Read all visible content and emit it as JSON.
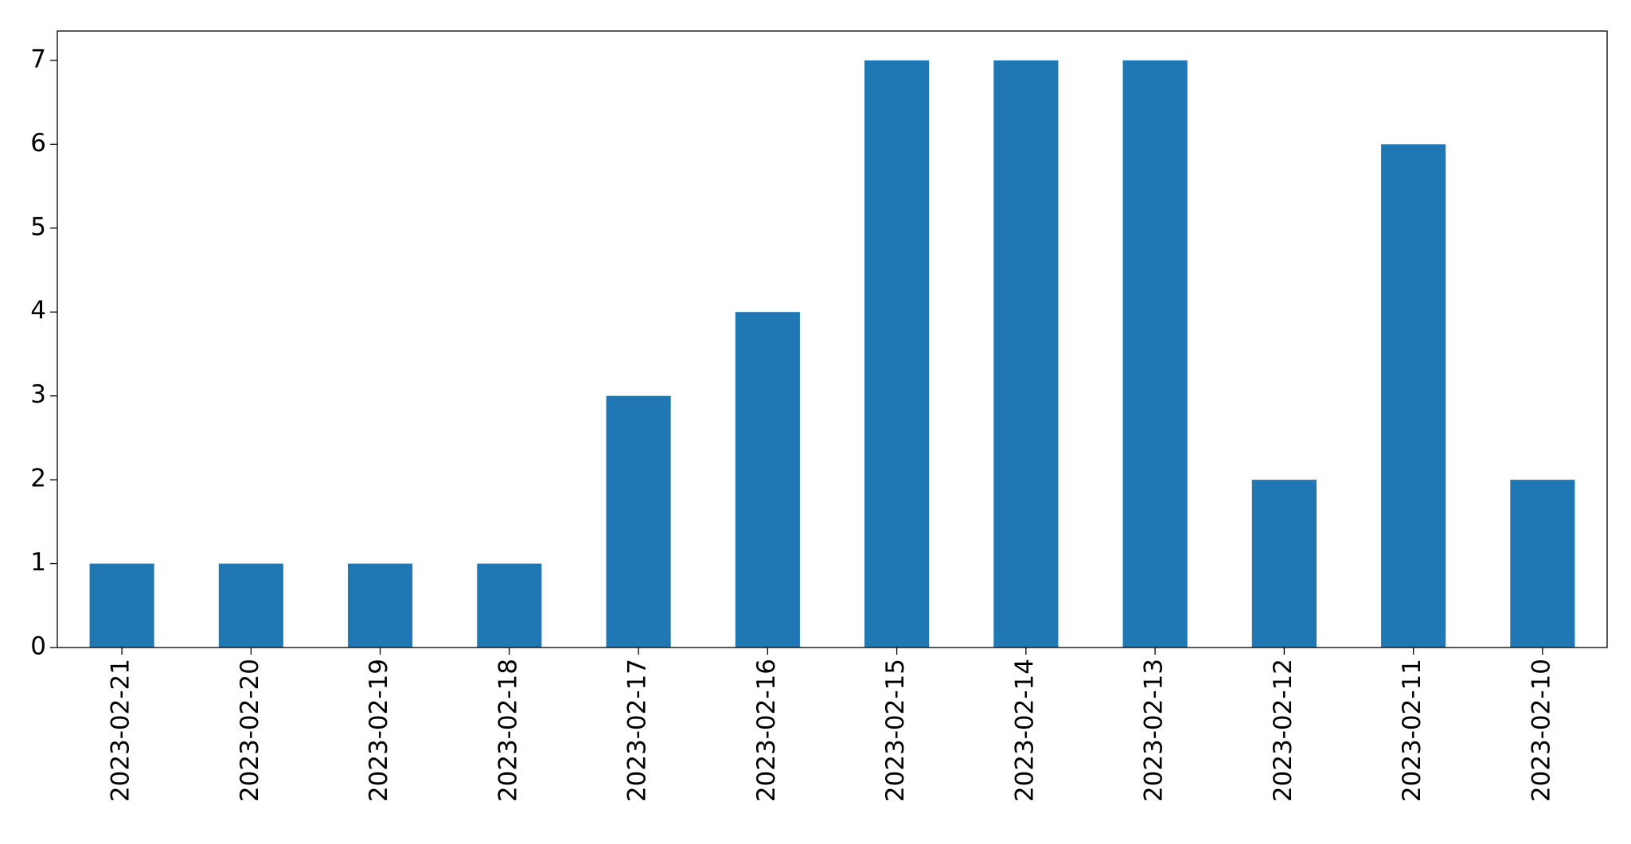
{
  "chart_data": {
    "type": "bar",
    "categories": [
      "2023-02-21",
      "2023-02-20",
      "2023-02-19",
      "2023-02-18",
      "2023-02-17",
      "2023-02-16",
      "2023-02-15",
      "2023-02-14",
      "2023-02-13",
      "2023-02-12",
      "2023-02-11",
      "2023-02-10"
    ],
    "values": [
      1,
      1,
      1,
      1,
      3,
      4,
      7,
      7,
      7,
      2,
      6,
      2
    ],
    "color": "#1f77b4",
    "ylim": [
      0,
      7.35
    ],
    "yticks": [
      0,
      1,
      2,
      3,
      4,
      5,
      6,
      7
    ],
    "grid": false
  }
}
